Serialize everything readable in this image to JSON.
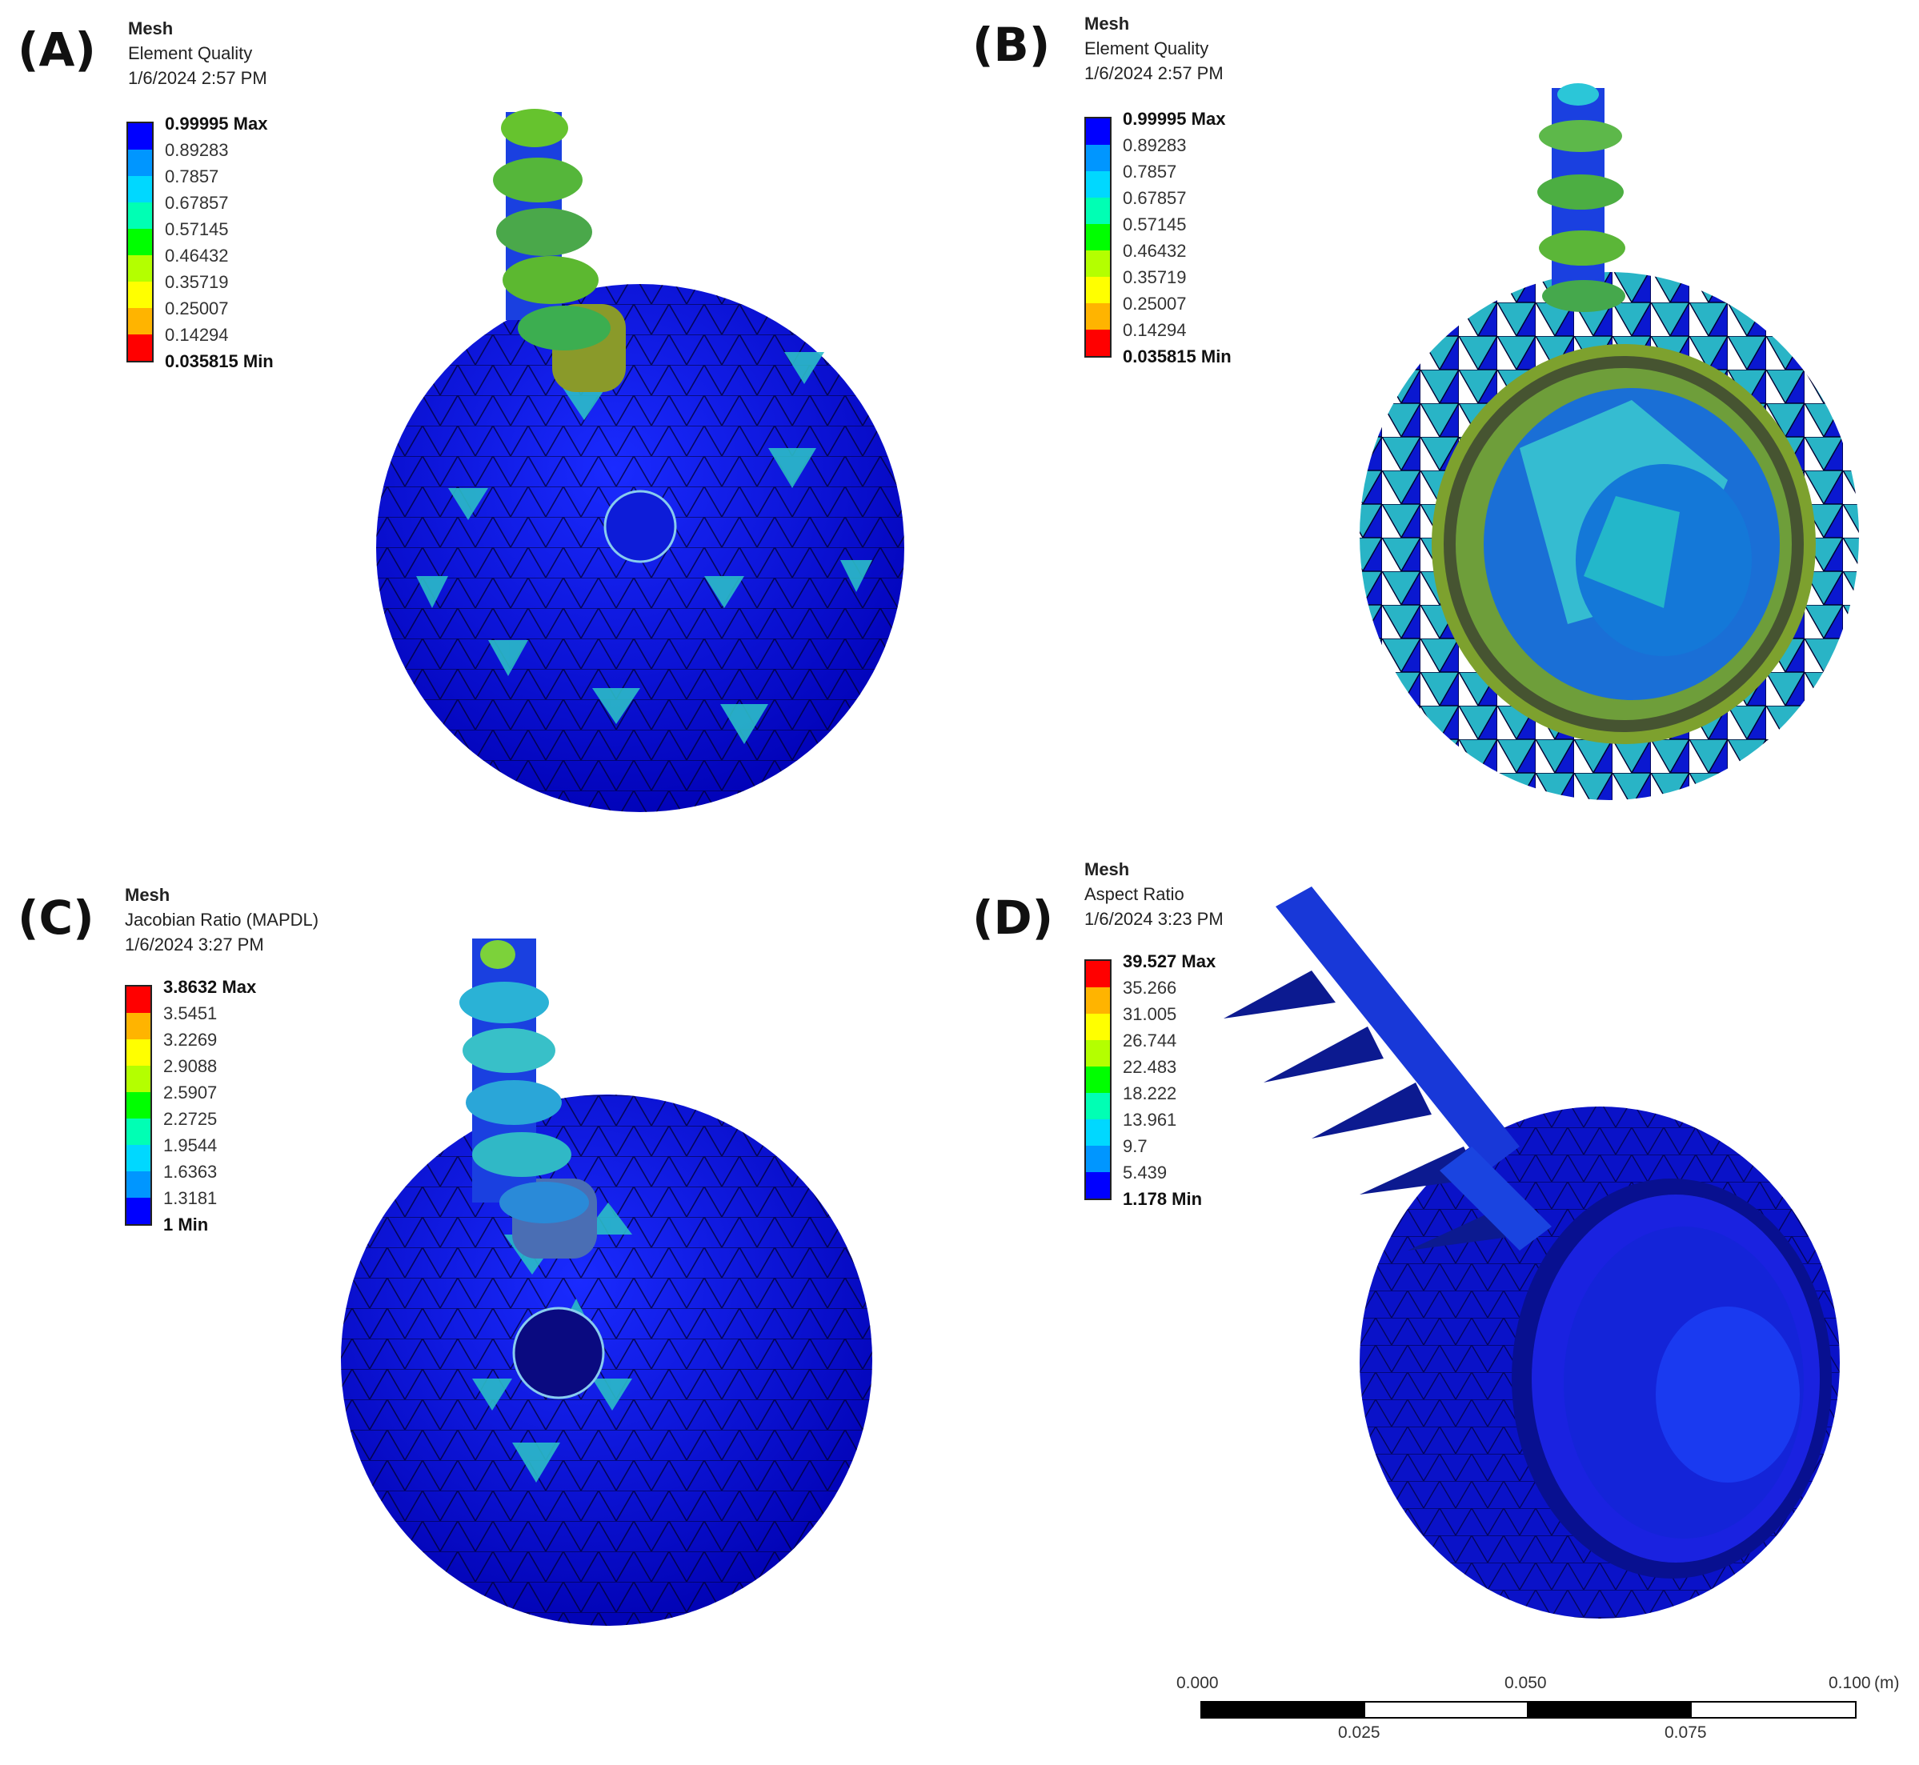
{
  "panels": [
    {
      "label": "(A)",
      "title": "Mesh",
      "metric": "Element Quality",
      "date": "1/6/2024 2:57 PM",
      "legend": [
        "0.99995 Max",
        "0.89283",
        "0.7857",
        "0.67857",
        "0.57145",
        "0.46432",
        "0.35719",
        "0.25007",
        "0.14294",
        "0.035815 Min"
      ],
      "colors": [
        "#0000ff",
        "#0096ff",
        "#00d8ff",
        "#00ffb4",
        "#00ff00",
        "#b4ff00",
        "#ffff00",
        "#ffb400",
        "#ff0000"
      ]
    },
    {
      "label": "(B)",
      "title": "Mesh",
      "metric": "Element Quality",
      "date": "1/6/2024 2:57 PM",
      "legend": [
        "0.99995 Max",
        "0.89283",
        "0.7857",
        "0.67857",
        "0.57145",
        "0.46432",
        "0.35719",
        "0.25007",
        "0.14294",
        "0.035815 Min"
      ],
      "colors": [
        "#0000ff",
        "#0096ff",
        "#00d8ff",
        "#00ffb4",
        "#00ff00",
        "#b4ff00",
        "#ffff00",
        "#ffb400",
        "#ff0000"
      ]
    },
    {
      "label": "(C)",
      "title": "Mesh",
      "metric": "Jacobian Ratio (MAPDL)",
      "date": "1/6/2024 3:27 PM",
      "legend": [
        "3.8632 Max",
        "3.5451",
        "3.2269",
        "2.9088",
        "2.5907",
        "2.2725",
        "1.9544",
        "1.6363",
        "1.3181",
        "1 Min"
      ],
      "colors": [
        "#ff0000",
        "#ffb400",
        "#ffff00",
        "#b4ff00",
        "#00ff00",
        "#00ffb4",
        "#00d8ff",
        "#0096ff",
        "#0000ff"
      ]
    },
    {
      "label": "(D)",
      "title": "Mesh",
      "metric": "Aspect Ratio",
      "date": "1/6/2024 3:23 PM",
      "legend": [
        "39.527 Max",
        "35.266",
        "31.005",
        "26.744",
        "22.483",
        "18.222",
        "13.961",
        "9.7",
        "5.439",
        "1.178 Min"
      ],
      "colors": [
        "#ff0000",
        "#ffb400",
        "#ffff00",
        "#b4ff00",
        "#00ff00",
        "#00ffb4",
        "#00d8ff",
        "#0096ff",
        "#0000ff"
      ]
    }
  ],
  "scale_bar": {
    "top_ticks": [
      "0.000",
      "0.050",
      "0.100"
    ],
    "bottom_ticks": [
      "0.025",
      "0.075"
    ],
    "unit": "(m)"
  }
}
